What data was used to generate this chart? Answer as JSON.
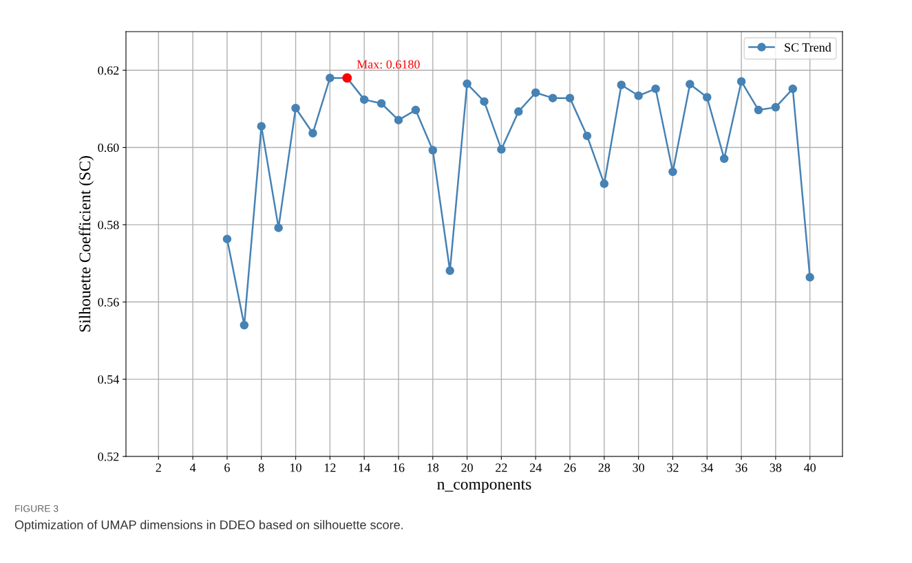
{
  "chart_data": {
    "type": "line",
    "xlabel": "n_components",
    "ylabel": "Silhouette Coefficient (SC)",
    "series": [
      {
        "name": "SC Trend",
        "color": "#4682b4",
        "x": [
          6,
          7,
          8,
          9,
          10,
          11,
          12,
          13,
          14,
          15,
          16,
          17,
          18,
          19,
          20,
          21,
          22,
          23,
          24,
          25,
          26,
          27,
          28,
          29,
          30,
          31,
          32,
          33,
          34,
          35,
          36,
          37,
          38,
          39,
          40
        ],
        "values": [
          0.5763,
          0.554,
          0.6055,
          0.5792,
          0.6102,
          0.6037,
          0.618,
          0.618,
          0.6124,
          0.6114,
          0.6071,
          0.6097,
          0.5993,
          0.5681,
          0.6165,
          0.6119,
          0.5995,
          0.6093,
          0.6142,
          0.6128,
          0.6128,
          0.603,
          0.5906,
          0.6162,
          0.6134,
          0.6152,
          0.5937,
          0.6164,
          0.613,
          0.5971,
          0.6171,
          0.6097,
          0.6104,
          0.6152,
          0.5664
        ]
      },
      {
        "type": "scatter",
        "color": "#ff0000",
        "x": [
          13
        ],
        "values": [
          0.618
        ]
      }
    ],
    "marker": "circle",
    "line_style": "solid",
    "xlim": [
      0.1,
      41.9
    ],
    "xticks": [
      2,
      4,
      6,
      8,
      10,
      12,
      14,
      16,
      18,
      20,
      22,
      24,
      26,
      28,
      30,
      32,
      34,
      36,
      38,
      40
    ],
    "ylim": [
      0.52,
      0.63
    ],
    "yticks": [
      {
        "value": 0.52,
        "label": "0.52"
      },
      {
        "value": 0.54,
        "label": "0.54"
      },
      {
        "value": 0.56,
        "label": "0.56"
      },
      {
        "value": 0.58,
        "label": "0.58"
      },
      {
        "value": 0.6,
        "label": "0.60"
      },
      {
        "value": 0.62,
        "label": "0.62"
      }
    ],
    "grid": true,
    "legend": "top right",
    "annotations": [
      {
        "text": "Max: 0.6180",
        "x": 13,
        "y": 0.618
      },
      "FIGURE 3",
      "Optimization of UMAP dimensions in DDEO based on silhouette score."
    ]
  }
}
